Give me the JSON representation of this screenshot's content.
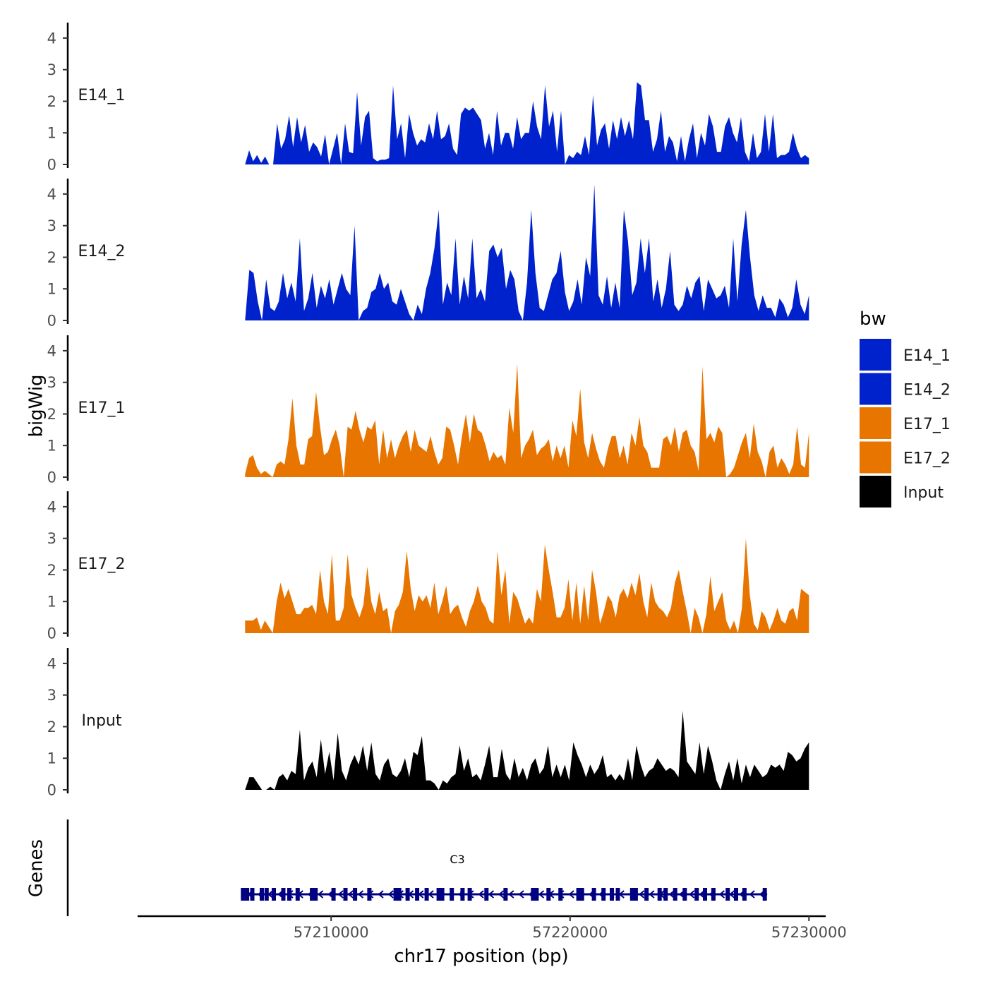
{
  "chart_data": {
    "type": "area",
    "title": "",
    "xlabel": "chr17 position (bp)",
    "ylabel": "bigWig",
    "genes_panel_label": "Genes",
    "xlim": [
      57201900,
      57230700
    ],
    "ylim": [
      0,
      4.4
    ],
    "x_ticks": [
      57210000,
      57220000,
      57230000
    ],
    "x_tick_labels": [
      "57210000",
      "57220000",
      "57230000"
    ],
    "y_ticks": [
      0,
      1,
      2,
      3,
      4
    ],
    "y_tick_labels": [
      "0",
      "1",
      "2",
      "3",
      "4"
    ],
    "legend": {
      "title": "bw",
      "placement": "right",
      "entries": [
        {
          "label": "E14_1",
          "color": "#0022CC"
        },
        {
          "label": "E14_2",
          "color": "#0022CC"
        },
        {
          "label": "E17_1",
          "color": "#E87500"
        },
        {
          "label": "E17_2",
          "color": "#E87500"
        },
        {
          "label": "Input",
          "color": "#000000"
        }
      ]
    },
    "x_start": 57206400,
    "x_end": 57230000,
    "series": [
      {
        "name": "E14_1",
        "color": "#0022CC",
        "label": "E14_1",
        "values": [
          0.0,
          0.45,
          0.1,
          0.3,
          0.05,
          0.25,
          0.0,
          0.0,
          1.3,
          0.5,
          0.8,
          1.55,
          0.55,
          1.5,
          0.7,
          1.25,
          0.4,
          0.7,
          0.55,
          0.25,
          0.95,
          0.0,
          0.5,
          1.0,
          0.0,
          1.3,
          0.4,
          0.35,
          2.3,
          0.6,
          1.5,
          1.7,
          0.2,
          0.1,
          0.15,
          0.15,
          0.2,
          2.5,
          0.8,
          1.3,
          0.2,
          1.6,
          1.0,
          0.6,
          0.8,
          0.7,
          1.3,
          0.8,
          1.7,
          0.8,
          0.9,
          1.3,
          0.5,
          0.3,
          1.6,
          1.8,
          1.7,
          1.8,
          1.6,
          1.4,
          0.5,
          1.0,
          0.3,
          1.7,
          0.6,
          1.0,
          1.0,
          0.5,
          1.5,
          0.8,
          1.0,
          1.0,
          2.0,
          1.2,
          0.8,
          2.5,
          1.2,
          1.7,
          0.4,
          1.7,
          0.0,
          0.3,
          0.2,
          0.4,
          0.3,
          0.9,
          0.3,
          2.2,
          0.6,
          1.1,
          1.3,
          0.5,
          1.4,
          0.8,
          1.5,
          0.9,
          1.4,
          0.8,
          2.6,
          2.5,
          1.4,
          1.4,
          0.4,
          0.8,
          1.7,
          0.4,
          0.9,
          0.7,
          0.1,
          0.9,
          0.1,
          0.8,
          1.3,
          0.2,
          1.0,
          0.6,
          1.6,
          1.2,
          0.4,
          0.4,
          1.2,
          1.5,
          1.0,
          0.7,
          1.5,
          0.4,
          0.1,
          1.0,
          0.2,
          0.4,
          1.6,
          0.4,
          1.6,
          0.2,
          0.3,
          0.3,
          0.4,
          1.0,
          0.5,
          0.2,
          0.3,
          0.2
        ]
      },
      {
        "name": "E14_2",
        "color": "#0022CC",
        "label": "E14_2",
        "values": [
          0.0,
          1.6,
          1.5,
          0.6,
          0.0,
          1.3,
          0.4,
          0.3,
          0.6,
          1.5,
          0.7,
          1.2,
          0.6,
          2.6,
          0.3,
          0.7,
          1.5,
          0.4,
          1.1,
          0.7,
          1.3,
          0.5,
          1.0,
          1.5,
          1.0,
          0.8,
          3.0,
          0.0,
          0.3,
          0.4,
          0.9,
          1.0,
          1.5,
          1.0,
          1.2,
          0.6,
          0.5,
          1.0,
          0.6,
          0.2,
          0.0,
          0.5,
          0.2,
          1.0,
          1.5,
          2.3,
          3.5,
          0.5,
          1.2,
          0.8,
          2.6,
          0.5,
          1.4,
          0.7,
          2.6,
          0.7,
          1.0,
          0.6,
          2.2,
          2.4,
          2.0,
          2.3,
          1.0,
          1.6,
          1.3,
          0.3,
          0.0,
          1.2,
          3.5,
          1.5,
          0.4,
          0.3,
          0.8,
          1.3,
          1.5,
          2.2,
          0.9,
          0.3,
          0.6,
          1.3,
          0.5,
          2.0,
          1.4,
          4.3,
          0.8,
          0.5,
          1.4,
          0.4,
          1.2,
          0.4,
          3.5,
          2.5,
          0.8,
          1.2,
          2.6,
          1.5,
          2.6,
          0.6,
          1.3,
          0.4,
          1.0,
          2.2,
          0.5,
          0.3,
          0.5,
          1.1,
          0.7,
          1.2,
          1.4,
          0.3,
          1.3,
          1.0,
          0.7,
          0.8,
          1.1,
          0.4,
          2.6,
          0.6,
          2.4,
          3.5,
          2.0,
          0.8,
          0.3,
          0.8,
          0.4,
          0.4,
          0.1,
          0.7,
          0.5,
          0.1,
          0.4,
          1.3,
          0.5,
          0.2,
          0.8
        ]
      },
      {
        "name": "E17_1",
        "color": "#E87500",
        "label": "E17_1",
        "values": [
          0.1,
          0.6,
          0.7,
          0.3,
          0.1,
          0.2,
          0.1,
          0.0,
          0.4,
          0.5,
          0.4,
          1.2,
          2.5,
          1.0,
          0.4,
          0.4,
          1.2,
          1.3,
          2.7,
          1.6,
          0.7,
          0.8,
          1.2,
          1.5,
          1.0,
          0.0,
          1.6,
          1.5,
          2.1,
          1.5,
          1.1,
          1.6,
          1.5,
          1.8,
          0.4,
          1.5,
          0.6,
          1.2,
          0.6,
          1.0,
          1.3,
          1.5,
          0.8,
          1.5,
          1.0,
          0.9,
          0.8,
          1.3,
          0.8,
          0.4,
          0.6,
          1.6,
          1.5,
          1.0,
          0.4,
          1.3,
          2.0,
          1.1,
          2.0,
          1.5,
          1.4,
          1.0,
          0.5,
          0.8,
          0.6,
          0.7,
          0.4,
          2.2,
          1.4,
          3.6,
          0.6,
          1.0,
          1.2,
          1.5,
          0.7,
          0.9,
          1.0,
          1.2,
          0.5,
          1.0,
          0.6,
          1.0,
          0.3,
          1.8,
          1.3,
          2.8,
          1.1,
          0.6,
          1.4,
          0.9,
          0.5,
          0.3,
          0.9,
          1.3,
          1.3,
          0.6,
          1.0,
          0.4,
          1.4,
          1.0,
          1.9,
          1.0,
          0.8,
          0.3,
          0.3,
          0.3,
          1.2,
          1.3,
          1.0,
          1.6,
          0.8,
          1.4,
          1.5,
          1.0,
          0.8,
          0.2,
          3.5,
          1.2,
          1.4,
          1.1,
          1.6,
          1.4,
          0.0,
          0.1,
          0.3,
          0.7,
          1.1,
          1.4,
          0.6,
          1.7,
          0.8,
          0.5,
          0.0,
          0.8,
          1.0,
          0.3,
          0.6,
          0.4,
          0.1,
          0.4,
          1.6,
          0.4,
          0.3,
          1.4
        ]
      },
      {
        "name": "E17_2",
        "color": "#E87500",
        "label": "E17_2",
        "values": [
          0.4,
          0.4,
          0.4,
          0.5,
          0.1,
          0.4,
          0.2,
          0.0,
          1.0,
          1.6,
          1.1,
          1.4,
          1.0,
          0.6,
          0.6,
          0.8,
          0.8,
          0.9,
          0.6,
          2.0,
          1.0,
          0.6,
          2.5,
          0.4,
          0.4,
          0.8,
          2.5,
          1.2,
          0.8,
          0.5,
          0.9,
          2.1,
          1.0,
          0.6,
          1.3,
          0.7,
          0.8,
          0.0,
          0.7,
          0.9,
          1.3,
          2.6,
          1.4,
          0.7,
          1.2,
          1.0,
          1.2,
          0.8,
          1.6,
          0.6,
          1.0,
          1.5,
          0.6,
          0.8,
          0.9,
          0.5,
          0.2,
          0.7,
          1.0,
          1.5,
          1.0,
          0.8,
          0.4,
          0.3,
          2.6,
          1.2,
          2.0,
          0.3,
          1.3,
          1.1,
          0.7,
          0.3,
          0.5,
          0.3,
          1.4,
          1.0,
          2.8,
          2.0,
          1.3,
          0.5,
          0.5,
          0.8,
          1.7,
          0.4,
          1.6,
          0.3,
          1.5,
          0.4,
          2.0,
          1.3,
          0.3,
          0.7,
          1.2,
          1.0,
          0.5,
          1.2,
          1.4,
          1.1,
          1.6,
          1.2,
          1.9,
          1.0,
          0.5,
          1.6,
          1.0,
          0.8,
          0.7,
          0.5,
          0.8,
          1.6,
          2.0,
          1.3,
          0.7,
          0.0,
          0.8,
          0.5,
          0.0,
          0.6,
          1.8,
          0.7,
          1.0,
          1.3,
          0.4,
          0.1,
          0.4,
          0.0,
          0.8,
          3.0,
          1.2,
          0.3,
          0.1,
          0.7,
          0.5,
          0.1,
          0.4,
          0.8,
          0.4,
          0.3,
          0.7,
          0.8,
          0.4,
          1.4,
          1.3,
          1.2
        ]
      },
      {
        "name": "Input",
        "color": "#000000",
        "label": "Input",
        "values": [
          0.0,
          0.4,
          0.4,
          0.2,
          0.0,
          0.0,
          0.1,
          0.0,
          0.4,
          0.5,
          0.3,
          0.6,
          0.5,
          1.9,
          0.3,
          0.7,
          0.9,
          0.4,
          1.6,
          0.5,
          1.2,
          0.3,
          1.8,
          0.6,
          0.3,
          0.8,
          1.1,
          0.8,
          1.4,
          0.6,
          1.5,
          0.5,
          0.3,
          0.8,
          1.0,
          0.5,
          0.4,
          0.6,
          1.0,
          0.4,
          1.2,
          1.1,
          1.7,
          0.3,
          0.3,
          0.2,
          0.0,
          0.3,
          0.2,
          0.4,
          0.5,
          1.4,
          0.6,
          1.0,
          0.4,
          0.5,
          0.3,
          0.8,
          1.4,
          0.4,
          0.4,
          1.3,
          0.5,
          0.3,
          1.0,
          0.4,
          0.7,
          0.3,
          0.8,
          1.0,
          0.5,
          0.7,
          1.4,
          0.4,
          0.8,
          0.4,
          0.8,
          0.3,
          1.5,
          1.1,
          0.8,
          0.4,
          0.8,
          0.5,
          0.7,
          1.1,
          0.4,
          0.5,
          0.3,
          0.5,
          0.3,
          1.0,
          0.3,
          1.4,
          0.8,
          0.4,
          0.6,
          0.7,
          1.0,
          0.8,
          0.6,
          0.7,
          0.6,
          0.4,
          2.5,
          0.9,
          0.7,
          0.5,
          1.5,
          0.5,
          1.4,
          0.9,
          0.3,
          0.0,
          0.5,
          0.9,
          0.3,
          1.0,
          0.2,
          0.8,
          0.4,
          0.8,
          0.6,
          0.4,
          0.5,
          0.8,
          0.7,
          0.8,
          0.6,
          1.2,
          1.1,
          0.9,
          1.0,
          1.3,
          1.5
        ]
      }
    ],
    "gene_track": {
      "gene_name": "C3",
      "strand": "-",
      "color": "#000080",
      "start": 57206300,
      "end": 57228250,
      "exons": [
        57206310,
        57206480,
        57206700,
        57207100,
        57207300,
        57207600,
        57208000,
        57208250,
        57208600,
        57209200,
        57209350,
        57210100,
        57210600,
        57211000,
        57211600,
        57212700,
        57212850,
        57213200,
        57213600,
        57214000,
        57214500,
        57214650,
        57215050,
        57215500,
        57215800,
        57216500,
        57217300,
        57218450,
        57218600,
        57219100,
        57219600,
        57220350,
        57220500,
        57221000,
        57221400,
        57221750,
        57222000,
        57222600,
        57222750,
        57223200,
        57223750,
        57224000,
        57224400,
        57224800,
        57225300,
        57225650,
        57226000,
        57226600,
        57226950,
        57227300,
        57228150
      ]
    }
  }
}
